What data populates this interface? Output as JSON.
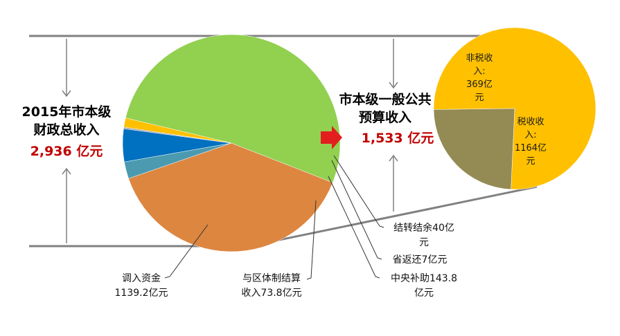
{
  "total": {
    "line1": "2015年市本级",
    "line2": "财政总收入",
    "amount": "2,936 亿元"
  },
  "budget": {
    "line1": "市本级一般公共",
    "line2": "预算收入",
    "amount": "1,533 亿元"
  },
  "colors": {
    "amount_red": "#c00000",
    "arrow_red": "#e31e1e",
    "guide_gray": "#808080"
  },
  "chart_data": [
    {
      "type": "pie",
      "name_text": "2015年市本级财政总收入",
      "unit": "亿元",
      "slices": [
        {
          "key": "budget",
          "value": 1533,
          "color": "#92d050",
          "label": ""
        },
        {
          "key": "tiaoru",
          "value": 1139.2,
          "color": "#dd8640",
          "label": "调入资金1139.2亿元"
        },
        {
          "key": "quti",
          "value": 73.8,
          "color": "#4b9ab0",
          "label": "与区体制结算收入73.8亿元"
        },
        {
          "key": "zhongyang",
          "value": 143.8,
          "color": "#0070c0",
          "label": "中央补助143.8亿元"
        },
        {
          "key": "shengfan",
          "value": 7,
          "color": "#a5a5a5",
          "label": "省返还7亿元"
        },
        {
          "key": "jiezhuan",
          "value": 40,
          "color": "#ffc000",
          "label": "结转结余40亿元"
        }
      ],
      "labels": {
        "tiaoru": [
          "调入资金",
          "1139.2亿元"
        ],
        "quti": [
          "与区体制结算",
          "收入73.8亿元"
        ],
        "zhongyang": [
          "中央补助143.8",
          "亿元"
        ],
        "shengfan": [
          "省返还7亿元"
        ],
        "jiezhuan": [
          "结转结余40亿",
          "元"
        ]
      }
    },
    {
      "type": "pie",
      "name_text": "市本级一般公共预算收入",
      "unit": "亿元",
      "slices": [
        {
          "key": "shui",
          "value": 1164,
          "color": "#ffc000",
          "label": "税收收入:1164亿元"
        },
        {
          "key": "feishui",
          "value": 369,
          "color": "#948a54",
          "label": "非税收入:369亿元"
        }
      ],
      "labels": {
        "shui": [
          "税收收",
          "入:",
          "1164亿",
          "元"
        ],
        "feishui": [
          "非税收",
          "入:",
          "369亿",
          "元"
        ]
      }
    }
  ]
}
